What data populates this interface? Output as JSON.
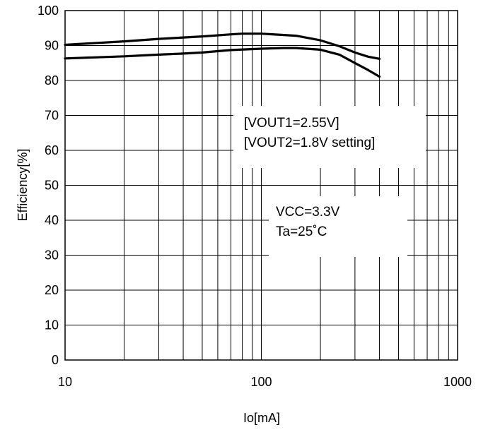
{
  "chart_data": {
    "type": "line",
    "title": "",
    "xlabel": "Io[mA]",
    "ylabel": "Efficiency[%]",
    "xscale": "log",
    "xlim": [
      10,
      1000
    ],
    "ylim": [
      0,
      100
    ],
    "x_ticks": [
      10,
      100,
      1000
    ],
    "x_tick_labels": [
      "10",
      "100",
      "1000"
    ],
    "y_ticks": [
      0,
      10,
      20,
      30,
      40,
      50,
      60,
      70,
      80,
      90,
      100
    ],
    "y_tick_labels": [
      "0",
      "10",
      "20",
      "30",
      "40",
      "50",
      "60",
      "70",
      "80",
      "90",
      "100"
    ],
    "grid": true,
    "series": [
      {
        "x": [
          10,
          20,
          30,
          40,
          50,
          70,
          80,
          100,
          150,
          200,
          250,
          300,
          350,
          400
        ],
        "y": [
          90.2,
          91.2,
          91.9,
          92.3,
          92.6,
          93.2,
          93.4,
          93.4,
          92.8,
          91.5,
          89.8,
          88.0,
          86.8,
          86.2
        ],
        "color": "#000000"
      },
      {
        "x": [
          10,
          20,
          30,
          40,
          50,
          70,
          100,
          130,
          150,
          200,
          250,
          300,
          350,
          400
        ],
        "y": [
          86.3,
          86.9,
          87.4,
          87.7,
          88.0,
          88.7,
          89.1,
          89.3,
          89.3,
          88.8,
          87.4,
          85.0,
          83.0,
          81.1
        ],
        "color": "#000000"
      }
    ],
    "annotations": [
      {
        "lines": [
          "[VOUT1=2.55V]",
          "[VOUT2=1.8V setting]"
        ]
      },
      {
        "lines": [
          "VCC=3.3V",
          "Ta=25˚C"
        ]
      }
    ]
  }
}
